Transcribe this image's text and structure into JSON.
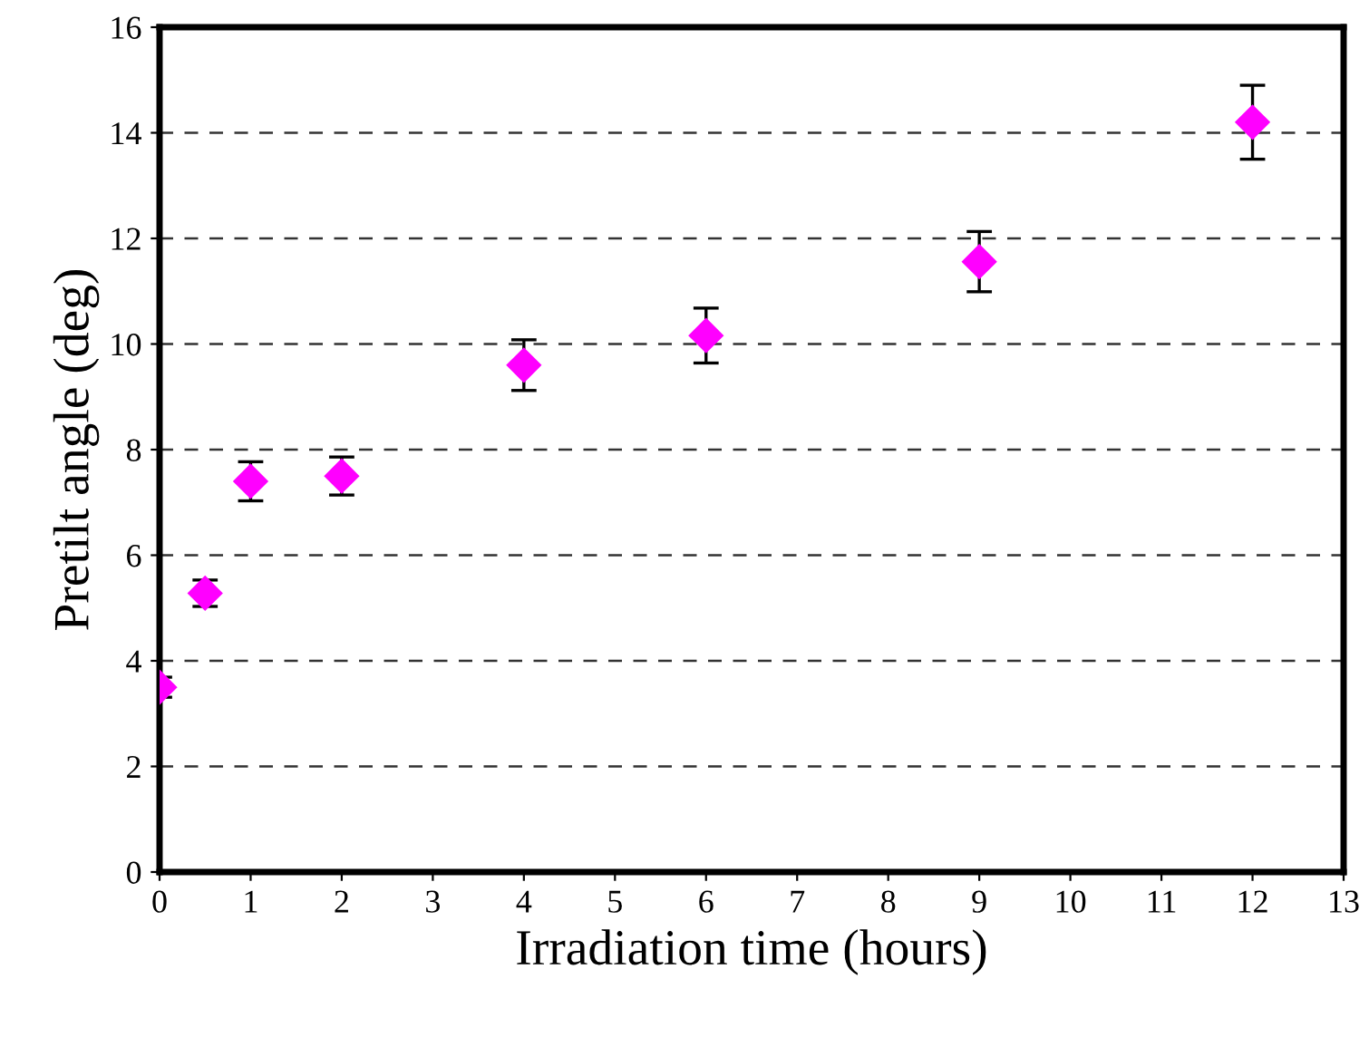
{
  "chart_data": {
    "type": "scatter",
    "xlabel": "Irradiation time (hours)",
    "ylabel": "Pretilt angle (deg)",
    "series": [
      {
        "color": "#ff00ff",
        "x": [
          0,
          0.5,
          1,
          2,
          4,
          6,
          9,
          12
        ],
        "values": [
          3.5,
          5.28,
          7.4,
          7.5,
          9.6,
          10.16,
          11.56,
          14.2
        ],
        "errors": [
          0.19,
          0.25,
          0.37,
          0.36,
          0.48,
          0.52,
          0.57,
          0.7
        ]
      }
    ],
    "xlim": [
      0,
      13
    ],
    "xticks": [
      0,
      1,
      2,
      3,
      4,
      5,
      6,
      7,
      8,
      9,
      10,
      11,
      12,
      13
    ],
    "ylim": [
      0,
      16
    ],
    "yticks": [
      0,
      2,
      4,
      6,
      8,
      10,
      12,
      14,
      16
    ],
    "grid": "y",
    "marker": "diamond",
    "legend": false
  }
}
